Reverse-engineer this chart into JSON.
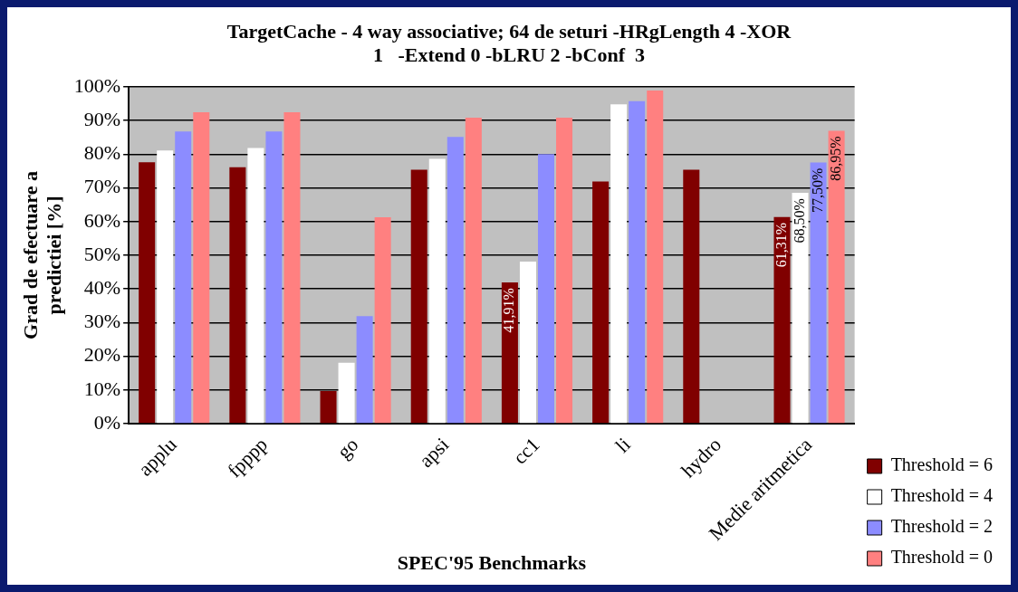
{
  "chart_data": {
    "type": "bar",
    "title": "TargetCache - 4 way associative; 64 de seturi -HRgLength 4 -XOR\n1   -Extend 0 -bLRU 2 -bConf  3",
    "xlabel": "SPEC'95 Benchmarks",
    "ylabel": "Grad de efectuare a\npredictiei [%]",
    "categories": [
      "applu",
      "fpppp",
      "go",
      "apsi",
      "cc1",
      "li",
      "hydro",
      "Medie aritmetica"
    ],
    "series": [
      {
        "name": "Threshold = 6",
        "color": "#800000",
        "values": [
          77.6,
          76.1,
          9.7,
          75.4,
          41.91,
          71.9,
          75.4,
          61.31
        ],
        "value_labels": [
          null,
          null,
          null,
          null,
          "41,91%",
          null,
          null,
          "61,31%"
        ]
      },
      {
        "name": "Threshold = 4",
        "color": "#ffffff",
        "values": [
          81.1,
          81.8,
          18.1,
          78.6,
          48.1,
          94.8,
          null,
          68.5
        ],
        "value_labels": [
          null,
          null,
          null,
          null,
          null,
          null,
          null,
          "68,50%"
        ]
      },
      {
        "name": "Threshold = 2",
        "color": "#8c8cff",
        "values": [
          86.7,
          86.7,
          31.9,
          85.1,
          80.0,
          95.7,
          null,
          77.5
        ],
        "value_labels": [
          null,
          null,
          null,
          null,
          null,
          null,
          null,
          "77,50%"
        ]
      },
      {
        "name": "Threshold = 0",
        "color": "#ff8080",
        "values": [
          92.4,
          92.4,
          61.3,
          90.8,
          90.8,
          98.9,
          null,
          86.95
        ],
        "value_labels": [
          null,
          null,
          null,
          null,
          null,
          null,
          null,
          "86,95%"
        ]
      }
    ],
    "ylim": [
      0,
      100
    ],
    "yticks": [
      {
        "value": 0,
        "label": "0%"
      },
      {
        "value": 10,
        "label": "10%"
      },
      {
        "value": 20,
        "label": "20%"
      },
      {
        "value": 30,
        "label": "30%"
      },
      {
        "value": 40,
        "label": "40%"
      },
      {
        "value": 50,
        "label": "50%"
      },
      {
        "value": 60,
        "label": "60%"
      },
      {
        "value": 70,
        "label": "70%"
      },
      {
        "value": 80,
        "label": "80%"
      },
      {
        "value": 90,
        "label": "90%"
      },
      {
        "value": 100,
        "label": "100%"
      }
    ],
    "grid": "y",
    "legend": "bottom right"
  }
}
